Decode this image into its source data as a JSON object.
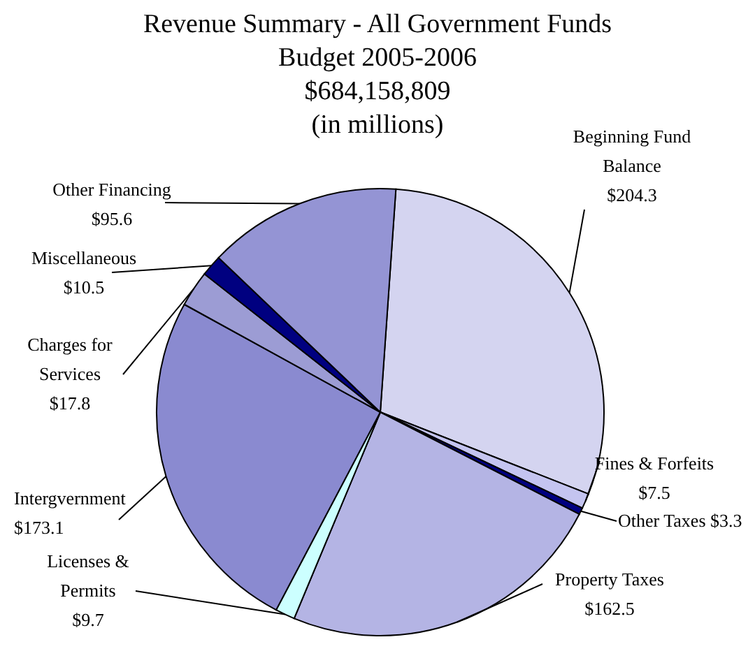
{
  "chart_data": {
    "type": "pie",
    "title": "Revenue Summary - All Government Funds",
    "subtitle": "Budget 2005-2006\n$684,158,809\n(in millions)",
    "categories": [
      "Beginning Fund Balance",
      "Fines & Forfeits",
      "Other Taxes",
      "Property Taxes",
      "Licenses & Permits",
      "Intergvernment",
      "Charges for Services",
      "Miscellaneous",
      "Other Financing"
    ],
    "values": [
      204.3,
      7.5,
      3.3,
      162.5,
      9.7,
      173.1,
      17.8,
      10.5,
      95.6
    ],
    "value_labels": [
      "$204.3",
      "$7.5",
      "$3.3",
      "$162.5",
      "$9.7",
      "$173.1",
      "$17.8",
      "$10.5",
      "$95.6"
    ],
    "colors": [
      "#d4d4f0",
      "#c4c4f0",
      "#000080",
      "#b4b4e4",
      "#ccffff",
      "#8a8ad0",
      "#9c9cd4",
      "#000080",
      "#9494d4"
    ]
  }
}
